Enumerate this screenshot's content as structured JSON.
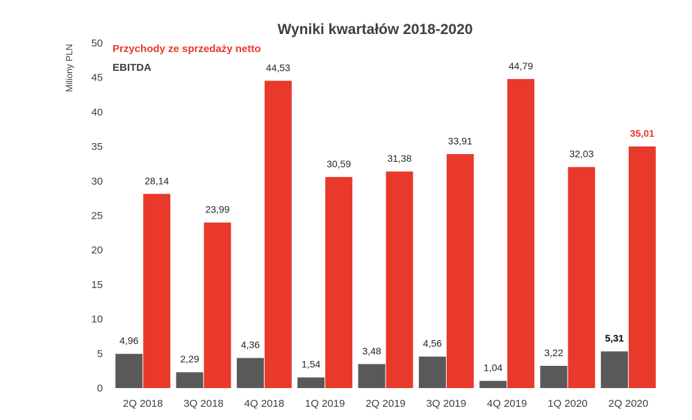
{
  "chart_data": {
    "type": "bar",
    "title": "Wyniki kwartałów 2018-2020",
    "ylabel": "Miliony  PLN",
    "xlabel": "",
    "ylim": [
      0,
      50
    ],
    "yticks": [
      0,
      5,
      10,
      15,
      20,
      25,
      30,
      35,
      40,
      45,
      50
    ],
    "grid": false,
    "legend_position": "top-left",
    "categories": [
      "2Q 2018",
      "3Q 2018",
      "4Q 2018",
      "1Q 2019",
      "2Q 2019",
      "3Q 2019",
      "4Q 2019",
      "1Q 2020",
      "2Q 2020"
    ],
    "series": [
      {
        "name": "EBITDA",
        "color": "#595959",
        "legend_color": "#404040",
        "values": [
          4.96,
          2.29,
          4.36,
          1.54,
          3.48,
          4.56,
          1.04,
          3.22,
          5.31
        ],
        "labels": [
          "4,96",
          "2,29",
          "4,36",
          "1,54",
          "3,48",
          "4,56",
          "1,04",
          "3,22",
          "5,31"
        ]
      },
      {
        "name": "Przychody ze sprzedaży netto",
        "color": "#e8392b",
        "legend_color": "#e8392b",
        "values": [
          28.14,
          23.99,
          44.53,
          30.59,
          31.38,
          33.91,
          44.79,
          32.03,
          35.01
        ],
        "labels": [
          "28,14",
          "23,99",
          "44,53",
          "30,59",
          "31,38",
          "33,91",
          "44,79",
          "32,03",
          "35,01"
        ]
      }
    ],
    "highlight_last": {
      "ebitda_color": "#000000",
      "revenue_color": "#e8392b"
    }
  }
}
